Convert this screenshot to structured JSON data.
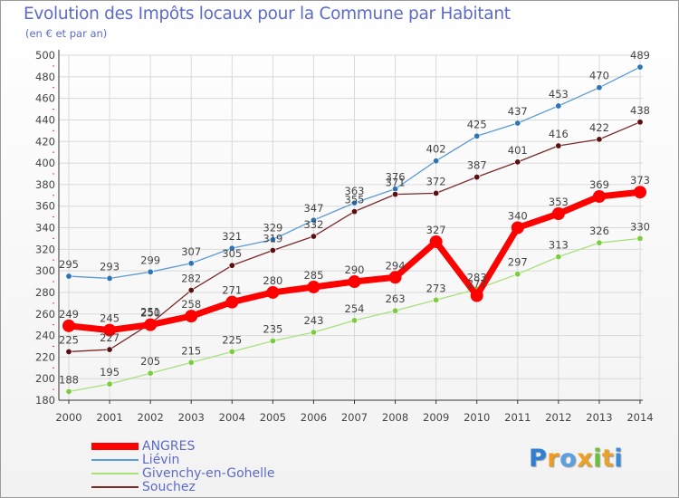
{
  "title": "Evolution des Impôts locaux pour la Commune par Habitant",
  "subtitle": "(en € et par an)",
  "logo": {
    "text": "Proxiti",
    "letters": [
      {
        "ch": "P",
        "color": "#2f7fd1"
      },
      {
        "ch": "r",
        "color": "#f29a1a"
      },
      {
        "ch": "o",
        "color": "#5aa0e0"
      },
      {
        "ch": "x",
        "color": "#f0a020"
      },
      {
        "ch": "i",
        "color": "#6cbf3a"
      },
      {
        "ch": "t",
        "color": "#e8a12a"
      },
      {
        "ch": "i",
        "color": "#3b8ad8"
      }
    ]
  },
  "colors": {
    "grid": "#d9d9d9",
    "axis": "#333333",
    "label": "#444444",
    "tick_red": "#ff3333"
  },
  "chart_data": {
    "type": "line",
    "title": "Evolution des Impôts locaux pour la Commune par Habitant",
    "subtitle": "(en € et par an)",
    "xlabel": "",
    "ylabel": "",
    "x": [
      "2000",
      "2001",
      "2002",
      "2003",
      "2004",
      "2005",
      "2006",
      "2007",
      "2008",
      "2009",
      "2010",
      "2011",
      "2012",
      "2013",
      "2014"
    ],
    "ylim": [
      180,
      500
    ],
    "yticks": [
      "180",
      "200",
      "220",
      "240",
      "260",
      "280",
      "300",
      "320",
      "340",
      "360",
      "380",
      "400",
      "420",
      "440",
      "460",
      "480",
      "500"
    ],
    "grid": true,
    "legend_position": "bottom-left",
    "series": [
      {
        "name": "Liévin",
        "color": "#5b9bd5",
        "marker": "#2e75b6",
        "width": 1.3,
        "marker_size": 3.2,
        "values": [
          295,
          293,
          299,
          307,
          321,
          329,
          347,
          363,
          376,
          402,
          425,
          437,
          453,
          470,
          489
        ],
        "labels": [
          "295",
          "293",
          "299",
          "307",
          "321",
          "329",
          "347",
          "363",
          "376",
          "402",
          "425",
          "437",
          "453",
          "470",
          "489"
        ]
      },
      {
        "name": "Souchez",
        "color": "#7b2a2a",
        "marker": "#5a1010",
        "width": 1.3,
        "marker_size": 3.2,
        "values": [
          225,
          227,
          251,
          282,
          305,
          319,
          332,
          355,
          371,
          372,
          387,
          401,
          416,
          422,
          438
        ],
        "labels": [
          "225",
          "227",
          "251",
          "282",
          "305",
          "319",
          "332",
          "355",
          "371",
          "372",
          "387",
          "401",
          "416",
          "422",
          "438"
        ]
      },
      {
        "name": "Givenchy-en-Gohelle",
        "color": "#a8e07a",
        "marker": "#7ccc3f",
        "width": 1.3,
        "marker_size": 3.2,
        "values": [
          188,
          195,
          205,
          215,
          225,
          235,
          243,
          254,
          263,
          273,
          283,
          297,
          313,
          326,
          330
        ],
        "labels": [
          "188",
          "195",
          "205",
          "215",
          "225",
          "235",
          "243",
          "254",
          "263",
          "273",
          "283",
          "297",
          "313",
          "326",
          "330"
        ]
      },
      {
        "name": "ANGRES",
        "color": "#ff0000",
        "marker": "#ff0000",
        "width": 7,
        "marker_size": 7,
        "values": [
          249,
          245,
          250,
          258,
          271,
          280,
          285,
          290,
          294,
          327,
          277,
          340,
          353,
          369,
          373
        ],
        "labels": [
          "249",
          "245",
          "250",
          "258",
          "271",
          "280",
          "285",
          "290",
          "294",
          "327",
          "277",
          "340",
          "353",
          "369",
          "373"
        ]
      }
    ],
    "legend": [
      "ANGRES",
      "Liévin",
      "Givenchy-en-Gohelle",
      "Souchez"
    ]
  }
}
